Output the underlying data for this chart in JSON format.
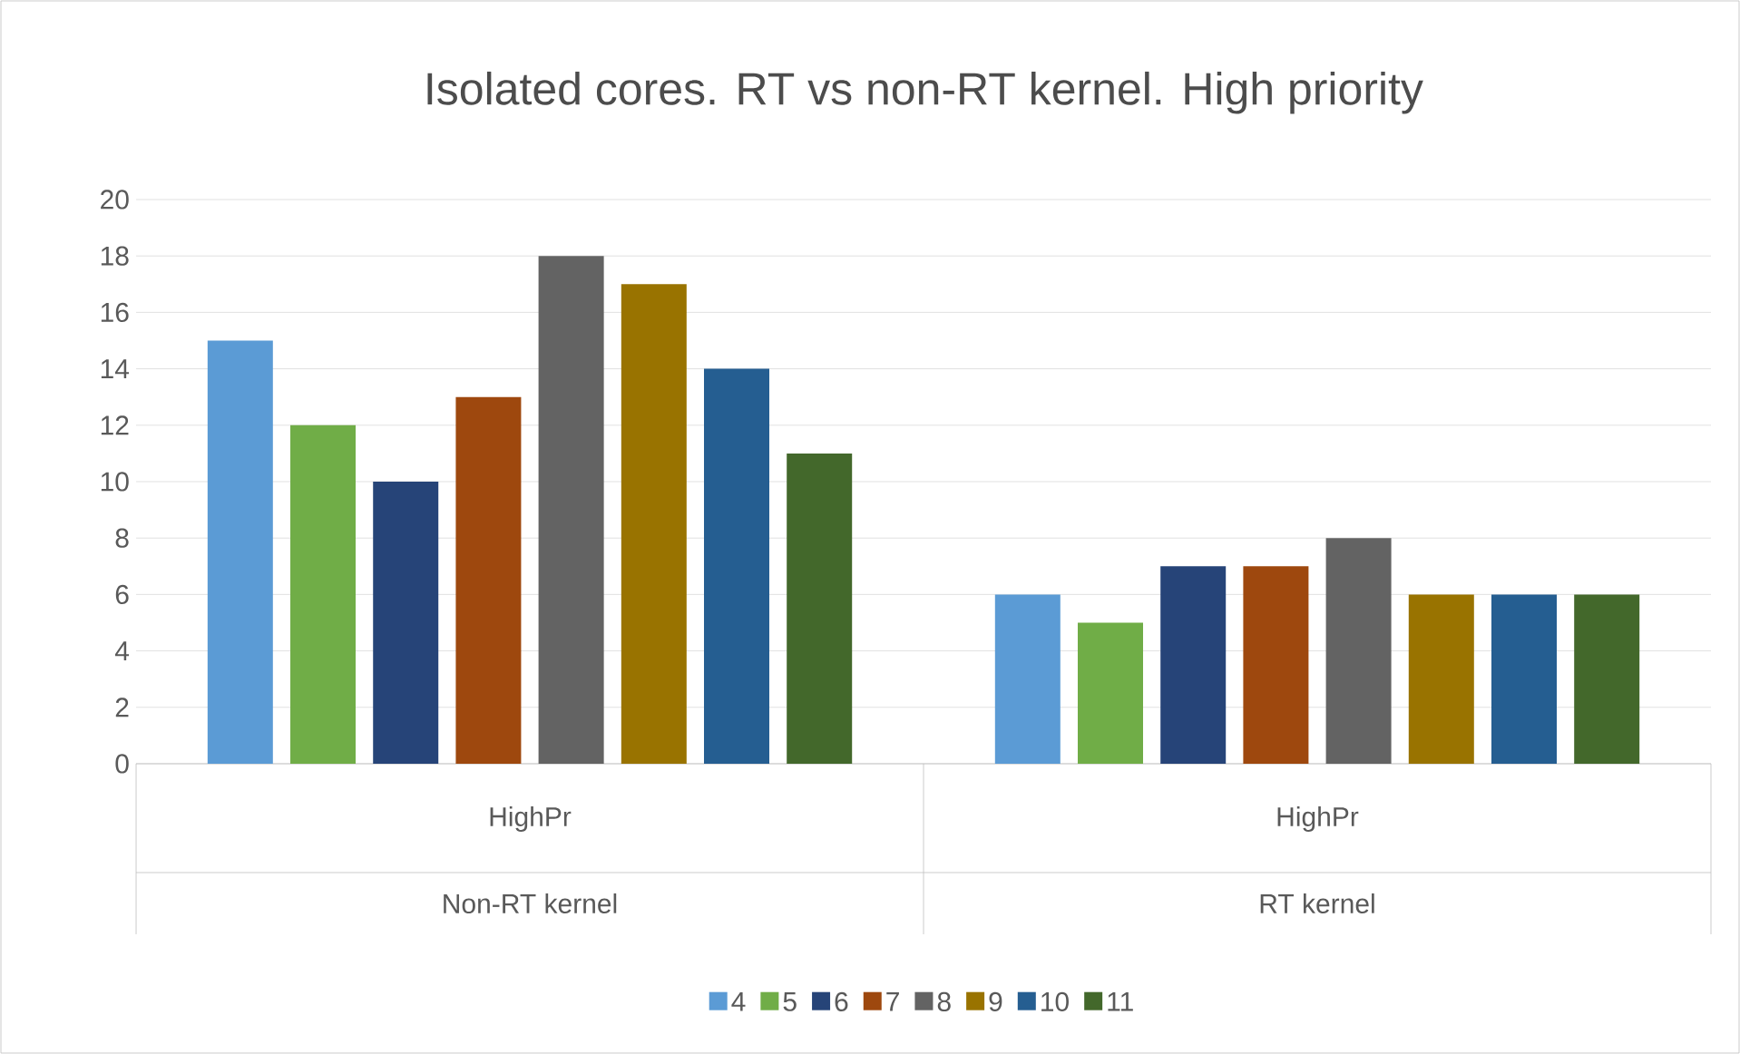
{
  "chart_data": {
    "type": "bar",
    "title": "Isolated cores. RT vs non-RT kernel. High priority",
    "categories": [
      "HighPr",
      "HighPr"
    ],
    "annotations": [
      "Non-RT kernel",
      "RT kernel"
    ],
    "series": [
      {
        "name": "4",
        "color": "#5b9bd5",
        "values": [
          15,
          6
        ]
      },
      {
        "name": "5",
        "color": "#70ad47",
        "values": [
          12,
          5
        ]
      },
      {
        "name": "6",
        "color": "#264478",
        "values": [
          10,
          7
        ]
      },
      {
        "name": "7",
        "color": "#9e480e",
        "values": [
          13,
          7
        ]
      },
      {
        "name": "8",
        "color": "#636363",
        "values": [
          18,
          8
        ]
      },
      {
        "name": "9",
        "color": "#997300",
        "values": [
          17,
          6
        ]
      },
      {
        "name": "10",
        "color": "#255e91",
        "values": [
          14,
          6
        ]
      },
      {
        "name": "11",
        "color": "#43682b",
        "values": [
          11,
          6
        ]
      }
    ],
    "ylim": [
      0,
      20
    ],
    "yticks": [
      0,
      2,
      4,
      6,
      8,
      10,
      12,
      14,
      16,
      18,
      20
    ],
    "grid": "y",
    "legend": "bottom"
  }
}
